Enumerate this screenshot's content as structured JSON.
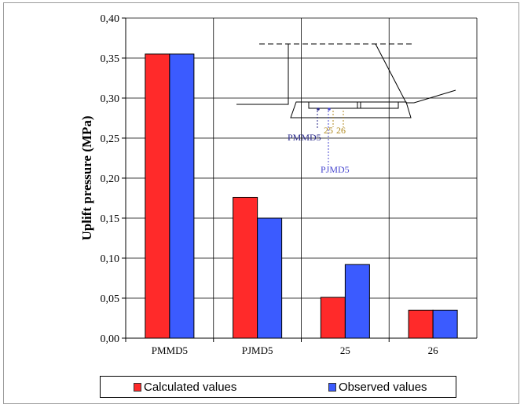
{
  "chart_data": {
    "type": "bar",
    "categories": [
      "PMMD5",
      "PJMD5",
      "25",
      "26"
    ],
    "series": [
      {
        "name": "Calculated values",
        "values": [
          0.355,
          0.176,
          0.051,
          0.035
        ],
        "color": "#ff2a2a"
      },
      {
        "name": "Observed values",
        "values": [
          0.355,
          0.15,
          0.092,
          0.035
        ],
        "color": "#3b5bff"
      }
    ],
    "ylabel": "Uplift pressure (MPa)",
    "xlabel": "",
    "ylim": [
      0,
      0.4
    ],
    "yticks": [
      "0,00",
      "0,05",
      "0,10",
      "0,15",
      "0,20",
      "0,25",
      "0,30",
      "0,35",
      "0,40"
    ],
    "grid": true,
    "legend_position": "bottom",
    "inset": {
      "labels": [
        {
          "text": "PMMD5",
          "color": "#2a2a8a"
        },
        {
          "text": "PJMD5",
          "color": "#4a4ad0"
        },
        {
          "text": "25",
          "color": "#b08a20"
        },
        {
          "text": "26",
          "color": "#b08a20"
        }
      ]
    }
  }
}
